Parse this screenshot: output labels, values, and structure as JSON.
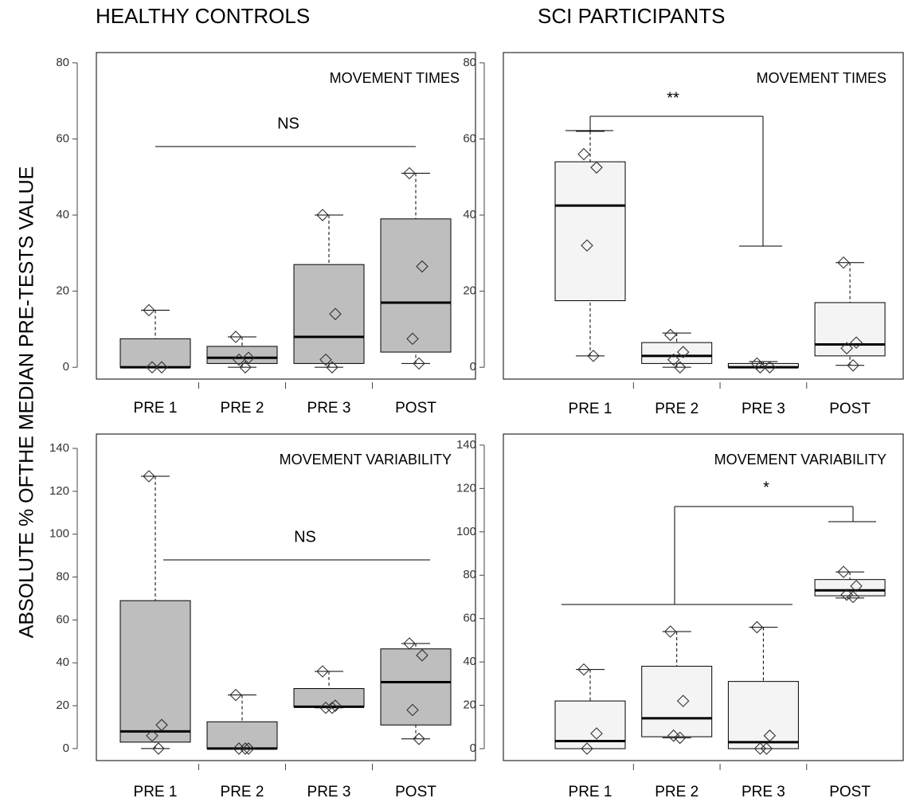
{
  "column_titles": [
    "HEALTHY CONTROLS",
    "SCI PARTICIPANTS"
  ],
  "ylabel": "ABSOLUTE % OFTHE MEDIAN PRE-TESTS VALUE",
  "chart_data": [
    {
      "type": "box",
      "title": "MOVEMENT TIMES",
      "categories": [
        "PRE 1",
        "PRE 2",
        "PRE 3",
        "POST"
      ],
      "ylim": [
        -3.1,
        82.7
      ],
      "yticks": [
        0,
        20,
        40,
        60,
        80
      ],
      "color": "#bebebe",
      "annotation": "NS",
      "boxes": [
        {
          "min": 0,
          "q1": 0,
          "median": 0,
          "q3": 7.5,
          "max": 15,
          "points": [
            15,
            0,
            0
          ]
        },
        {
          "min": 0,
          "q1": 1,
          "median": 2.5,
          "q3": 5.5,
          "max": 8,
          "points": [
            8,
            2.5,
            2,
            0
          ]
        },
        {
          "min": 0,
          "q1": 1,
          "median": 8,
          "q3": 27,
          "max": 40,
          "points": [
            40,
            14,
            2,
            0
          ]
        },
        {
          "min": 1,
          "q1": 4,
          "median": 17,
          "q3": 39,
          "max": 51,
          "points": [
            51,
            26.5,
            7.5,
            1
          ]
        }
      ]
    },
    {
      "type": "box",
      "title": "MOVEMENT TIMES",
      "categories": [
        "PRE 1",
        "PRE 2",
        "PRE 3",
        "POST"
      ],
      "ylim": [
        -3.1,
        82.7
      ],
      "yticks": [
        0,
        20,
        40,
        60,
        80
      ],
      "color": "#f4f4f4",
      "annotation": "**",
      "boxes": [
        {
          "min": 3,
          "q1": 17.5,
          "median": 42.5,
          "q3": 54,
          "max": 62,
          "points": [
            56,
            52.5,
            32,
            3
          ]
        },
        {
          "min": 0,
          "q1": 1,
          "median": 3,
          "q3": 6.5,
          "max": 9,
          "points": [
            8.5,
            4,
            2,
            0
          ]
        },
        {
          "min": 0,
          "q1": 0,
          "median": 0,
          "q3": 1,
          "max": 1.5,
          "points": [
            1,
            0,
            0
          ]
        },
        {
          "min": 0.5,
          "q1": 3,
          "median": 6,
          "q3": 17,
          "max": 27.5,
          "points": [
            27.5,
            6.5,
            5,
            0.5
          ]
        }
      ]
    },
    {
      "type": "box",
      "title": "MOVEMENT VARIABILITY",
      "categories": [
        "PRE 1",
        "PRE 2",
        "PRE 3",
        "POST"
      ],
      "ylim": [
        -5.6,
        146.7
      ],
      "yticks": [
        0,
        20,
        40,
        60,
        80,
        100,
        120,
        140
      ],
      "color": "#bebebe",
      "annotation": "NS",
      "boxes": [
        {
          "min": 0,
          "q1": 3,
          "median": 8,
          "q3": 69,
          "max": 127,
          "points": [
            127,
            11,
            6,
            0
          ]
        },
        {
          "min": 0,
          "q1": 0,
          "median": 0,
          "q3": 12.5,
          "max": 25,
          "points": [
            25,
            0,
            0,
            0
          ]
        },
        {
          "min": 19,
          "q1": 19.5,
          "median": 19.5,
          "q3": 28,
          "max": 36,
          "points": [
            36,
            20,
            19,
            19
          ]
        },
        {
          "min": 4.5,
          "q1": 11,
          "median": 31,
          "q3": 46.5,
          "max": 49,
          "points": [
            49,
            43.5,
            18,
            4.5
          ]
        }
      ]
    },
    {
      "type": "box",
      "title": "MOVEMENT VARIABILITY",
      "categories": [
        "PRE 1",
        "PRE 2",
        "PRE 3",
        "POST"
      ],
      "ylim": [
        -5.5,
        145.1
      ],
      "yticks": [
        0,
        20,
        40,
        60,
        80,
        100,
        120,
        140
      ],
      "color": "#f4f4f4",
      "annotation": "*",
      "boxes": [
        {
          "min": 0,
          "q1": 0,
          "median": 3.5,
          "q3": 22,
          "max": 36.5,
          "points": [
            36.5,
            7,
            0
          ]
        },
        {
          "min": 5,
          "q1": 5.5,
          "median": 14,
          "q3": 38,
          "max": 54,
          "points": [
            54,
            22,
            6,
            5
          ]
        },
        {
          "min": 0,
          "q1": 0,
          "median": 3,
          "q3": 31,
          "max": 56,
          "points": [
            56,
            6,
            0,
            0
          ]
        },
        {
          "min": 69.5,
          "q1": 70.5,
          "median": 73,
          "q3": 78,
          "max": 81.5,
          "points": [
            81.5,
            75,
            71,
            70
          ]
        }
      ]
    }
  ]
}
